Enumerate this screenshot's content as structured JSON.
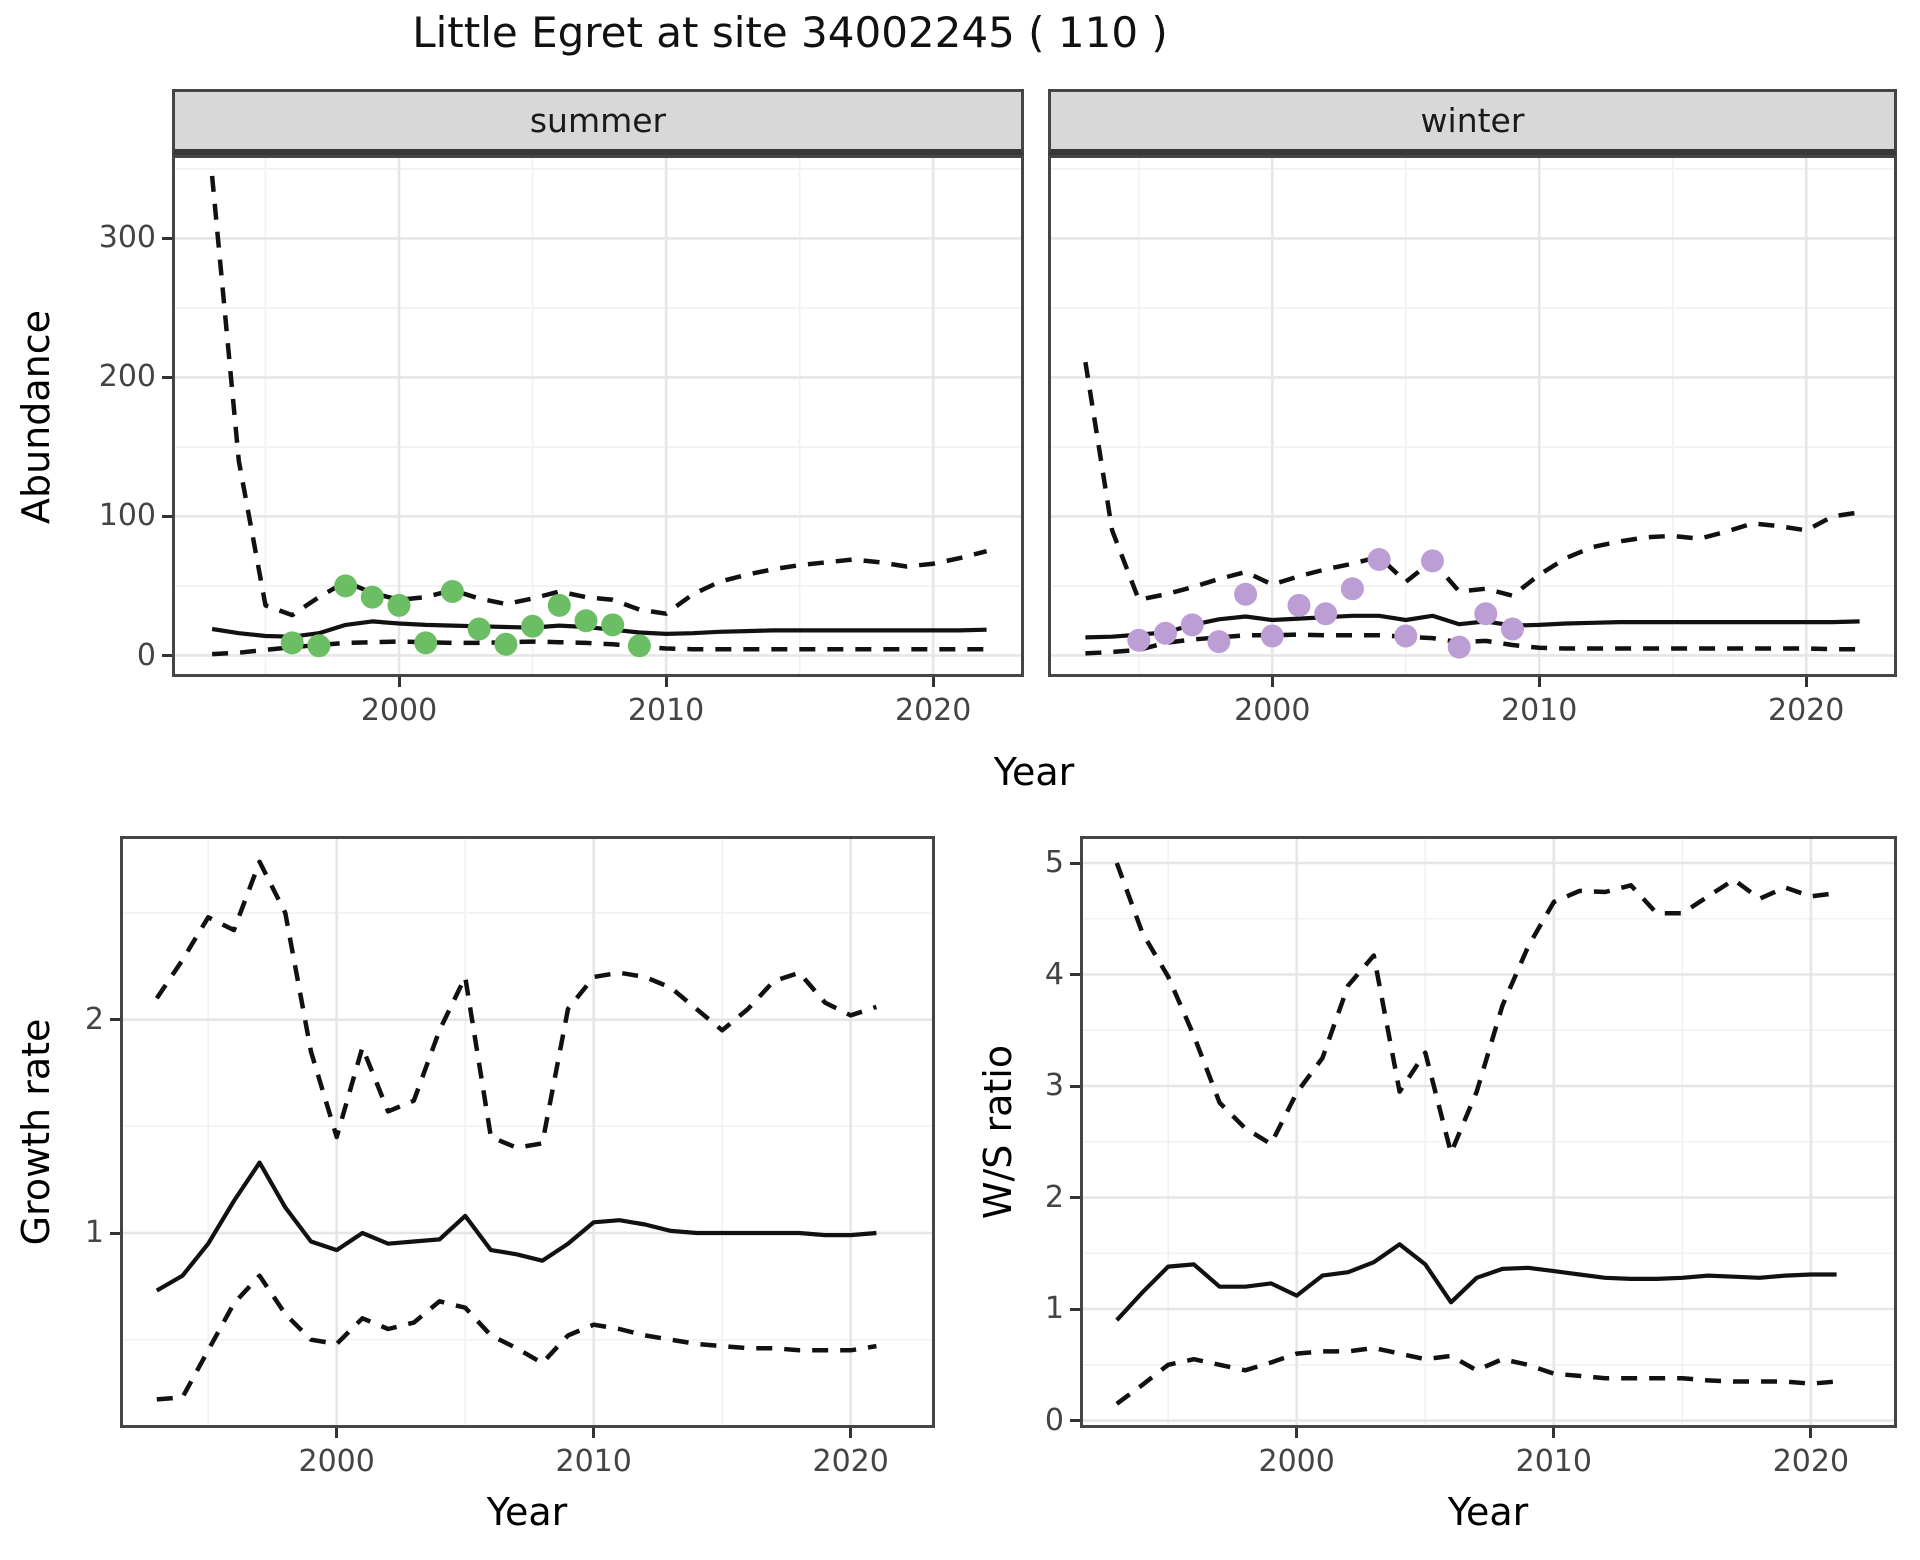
{
  "title": "Little Egret at site 34002245 ( 110 )",
  "strips": [
    "summer",
    "winter"
  ],
  "axis_titles": {
    "abundance": "Abundance",
    "year_top": "Year",
    "growth": "Growth rate",
    "year_bottom_left": "Year",
    "ws": "W/S ratio",
    "year_bottom_right": "Year"
  },
  "colors": {
    "summer_points": "#6CBE64",
    "winter_points": "#BC9DD4",
    "line": "#111111",
    "grid_major": "#e6e6e6",
    "grid_minor": "#f1f1f1",
    "panel_border": "#454545",
    "axis_text": "#444444",
    "strip_bg": "#d8d8d8"
  },
  "chart_data": [
    {
      "id": "abundance_summer",
      "type": "line",
      "facet": "summer",
      "xlabel": "Year",
      "ylabel": "Abundance",
      "x_ticks": [
        2000,
        2010,
        2020
      ],
      "y_ticks": [
        0,
        100,
        200,
        300
      ],
      "show_y_tick_labels": true,
      "xlim": [
        1991.5,
        2023.4
      ],
      "ylim": [
        -15.5,
        360
      ],
      "x": [
        1993,
        1994,
        1995,
        1996,
        1997,
        1998,
        1999,
        2000,
        2001,
        2002,
        2003,
        2004,
        2005,
        2006,
        2007,
        2008,
        2009,
        2010,
        2011,
        2012,
        2013,
        2014,
        2015,
        2016,
        2017,
        2018,
        2019,
        2020,
        2021,
        2022
      ],
      "series": [
        {
          "name": "median",
          "style": "solid",
          "values": [
            19,
            16,
            14,
            13.5,
            16,
            22,
            24.5,
            23,
            22,
            21.5,
            21,
            20.5,
            20,
            21.5,
            20.5,
            18.5,
            16.5,
            15.5,
            16,
            17,
            17.5,
            18,
            18,
            18,
            18,
            18,
            18,
            18,
            18,
            18.5
          ]
        },
        {
          "name": "upper_ci",
          "style": "dashed",
          "values": [
            345,
            140,
            36,
            29,
            42,
            53,
            45,
            40,
            42,
            47,
            41,
            37,
            41,
            46,
            42,
            40,
            33,
            30,
            44,
            53,
            58,
            62,
            65,
            67,
            69,
            67,
            64,
            66,
            70,
            75
          ]
        },
        {
          "name": "lower_ci",
          "style": "dashed",
          "values": [
            1,
            2,
            4,
            6,
            7.5,
            9,
            9.5,
            10,
            9.5,
            9,
            9,
            9.5,
            10,
            9.5,
            9,
            8,
            6.5,
            5,
            4.5,
            4.5,
            4.5,
            4.5,
            4.5,
            4.5,
            4.5,
            4.5,
            4.5,
            4.5,
            4.5,
            4.5
          ]
        }
      ],
      "points": {
        "name": "observed_counts",
        "color": "#6CBE64",
        "years": [
          1996,
          1997,
          1998,
          1999,
          2000,
          2001,
          2002,
          2003,
          2004,
          2005,
          2006,
          2007,
          2008,
          2009
        ],
        "values": [
          9,
          7,
          50,
          42,
          36,
          9,
          46,
          19,
          8,
          21,
          36,
          25,
          22,
          7
        ]
      }
    },
    {
      "id": "abundance_winter",
      "type": "line",
      "facet": "winter",
      "xlabel": "Year",
      "ylabel": "Abundance",
      "x_ticks": [
        2000,
        2010,
        2020
      ],
      "y_ticks": [
        0,
        100,
        200,
        300
      ],
      "show_y_tick_labels": false,
      "xlim": [
        1991.6,
        2023.4
      ],
      "ylim": [
        -15.5,
        360
      ],
      "x": [
        1993,
        1994,
        1995,
        1996,
        1997,
        1998,
        1999,
        2000,
        2001,
        2002,
        2003,
        2004,
        2005,
        2006,
        2007,
        2008,
        2009,
        2010,
        2011,
        2012,
        2013,
        2014,
        2015,
        2016,
        2017,
        2018,
        2019,
        2020,
        2021,
        2022
      ],
      "series": [
        {
          "name": "median",
          "style": "solid",
          "values": [
            13,
            13.5,
            15,
            16.5,
            22,
            26,
            28,
            25.5,
            26.5,
            27.5,
            28.5,
            28.5,
            25.5,
            28.5,
            22.5,
            24.5,
            21.5,
            22,
            23,
            23.5,
            24,
            24,
            24,
            24,
            24,
            24,
            24,
            24,
            24,
            24.5
          ]
        },
        {
          "name": "upper_ci",
          "style": "dashed",
          "values": [
            211,
            90,
            40,
            44,
            49,
            55,
            60,
            51,
            57,
            62,
            66,
            71,
            53,
            68,
            46,
            48,
            43,
            58,
            70,
            78,
            82,
            85,
            86,
            84,
            89,
            95,
            93,
            90,
            100,
            103
          ]
        },
        {
          "name": "lower_ci",
          "style": "dashed",
          "values": [
            1.5,
            2.5,
            4,
            9,
            11.5,
            13,
            14.5,
            14.5,
            15,
            14.5,
            14.5,
            14.5,
            13.5,
            12.5,
            9.5,
            10.5,
            7.5,
            5.5,
            5,
            5,
            5,
            5,
            5,
            5,
            5,
            5,
            5,
            5,
            4.5,
            4.5
          ]
        }
      ],
      "points": {
        "name": "observed_counts",
        "color": "#BC9DD4",
        "years": [
          1995,
          1996,
          1997,
          1998,
          1999,
          2000,
          2001,
          2002,
          2003,
          2004,
          2005,
          2006,
          2007,
          2008,
          2009
        ],
        "values": [
          11,
          16,
          22,
          10,
          44,
          14,
          36,
          30,
          48,
          69,
          14,
          68,
          6,
          30,
          19
        ]
      }
    },
    {
      "id": "growth_rate",
      "type": "line",
      "facet": null,
      "xlabel": "Year",
      "ylabel": "Growth rate",
      "x_ticks": [
        2000,
        2010,
        2020
      ],
      "y_ticks": [
        1,
        2
      ],
      "show_y_tick_labels": true,
      "xlim": [
        1991.57,
        2023.28
      ],
      "ylim": [
        0.086,
        2.861
      ],
      "x": [
        1993,
        1994,
        1995,
        1996,
        1997,
        1998,
        1999,
        2000,
        2001,
        2002,
        2003,
        2004,
        2005,
        2006,
        2007,
        2008,
        2009,
        2010,
        2011,
        2012,
        2013,
        2014,
        2015,
        2016,
        2017,
        2018,
        2019,
        2020,
        2021
      ],
      "series": [
        {
          "name": "median",
          "style": "solid",
          "values": [
            0.73,
            0.8,
            0.95,
            1.15,
            1.33,
            1.12,
            0.96,
            0.92,
            1.0,
            0.95,
            0.96,
            0.97,
            1.08,
            0.92,
            0.9,
            0.87,
            0.95,
            1.05,
            1.06,
            1.04,
            1.01,
            1.0,
            1.0,
            1.0,
            1.0,
            1.0,
            0.99,
            0.99,
            1.0
          ]
        },
        {
          "name": "upper_ci",
          "style": "dashed",
          "values": [
            2.1,
            2.28,
            2.48,
            2.42,
            2.74,
            2.5,
            1.85,
            1.45,
            1.87,
            1.57,
            1.62,
            1.95,
            2.2,
            1.45,
            1.4,
            1.42,
            2.05,
            2.2,
            2.22,
            2.2,
            2.15,
            2.05,
            1.95,
            2.05,
            2.18,
            2.22,
            2.08,
            2.02,
            2.06
          ]
        },
        {
          "name": "lower_ci",
          "style": "dashed",
          "values": [
            0.22,
            0.23,
            0.45,
            0.67,
            0.8,
            0.62,
            0.5,
            0.48,
            0.6,
            0.55,
            0.58,
            0.68,
            0.65,
            0.52,
            0.46,
            0.39,
            0.52,
            0.57,
            0.55,
            0.52,
            0.5,
            0.48,
            0.47,
            0.46,
            0.46,
            0.45,
            0.45,
            0.45,
            0.47
          ]
        }
      ],
      "points": null
    },
    {
      "id": "ws_ratio",
      "type": "line",
      "facet": null,
      "xlabel": "Year",
      "ylabel": "W/S ratio",
      "x_ticks": [
        2000,
        2010,
        2020
      ],
      "y_ticks": [
        0,
        1,
        2,
        3,
        4,
        5
      ],
      "show_y_tick_labels": true,
      "xlim": [
        1991.57,
        2023.35
      ],
      "ylim": [
        -0.067,
        5.242
      ],
      "x": [
        1993,
        1994,
        1995,
        1996,
        1997,
        1998,
        1999,
        2000,
        2001,
        2002,
        2003,
        2004,
        2005,
        2006,
        2007,
        2008,
        2009,
        2010,
        2011,
        2012,
        2013,
        2014,
        2015,
        2016,
        2017,
        2018,
        2019,
        2020,
        2021
      ],
      "series": [
        {
          "name": "median",
          "style": "solid",
          "values": [
            0.9,
            1.15,
            1.38,
            1.4,
            1.2,
            1.2,
            1.23,
            1.12,
            1.3,
            1.33,
            1.42,
            1.58,
            1.4,
            1.06,
            1.28,
            1.36,
            1.37,
            1.34,
            1.31,
            1.28,
            1.27,
            1.27,
            1.28,
            1.3,
            1.29,
            1.28,
            1.3,
            1.31,
            1.31
          ]
        },
        {
          "name": "upper_ci",
          "style": "dashed",
          "values": [
            5.0,
            4.37,
            3.98,
            3.45,
            2.85,
            2.62,
            2.48,
            2.94,
            3.25,
            3.9,
            4.17,
            2.95,
            3.3,
            2.4,
            2.95,
            3.72,
            4.25,
            4.65,
            4.75,
            4.74,
            4.8,
            4.55,
            4.55,
            4.7,
            4.85,
            4.68,
            4.78,
            4.7,
            4.73
          ]
        },
        {
          "name": "lower_ci",
          "style": "dashed",
          "values": [
            0.15,
            0.32,
            0.5,
            0.55,
            0.5,
            0.45,
            0.52,
            0.6,
            0.62,
            0.62,
            0.65,
            0.6,
            0.55,
            0.58,
            0.45,
            0.55,
            0.5,
            0.42,
            0.4,
            0.38,
            0.38,
            0.38,
            0.38,
            0.36,
            0.35,
            0.35,
            0.35,
            0.33,
            0.35
          ]
        }
      ],
      "points": null
    }
  ]
}
